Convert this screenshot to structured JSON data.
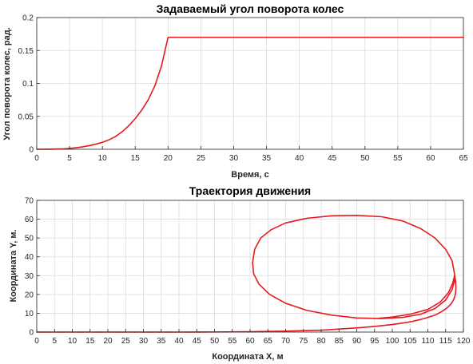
{
  "colors": {
    "series": "#e8191f",
    "grid": "#dcdcdc",
    "axis": "#262626",
    "background": "#ffffff"
  },
  "chart_data": [
    {
      "type": "line",
      "title": "Задаваемый угол поворота колес",
      "xlabel": "Время, с",
      "ylabel": "Угол поворота колес, рад.",
      "xlim": [
        0,
        65
      ],
      "ylim": [
        0,
        0.2
      ],
      "xticks": [
        0,
        5,
        10,
        15,
        20,
        25,
        30,
        35,
        40,
        45,
        50,
        55,
        60,
        65
      ],
      "yticks": [
        0,
        0.05,
        0.1,
        0.15,
        0.2
      ],
      "xtick_labels": [
        "0",
        "5",
        "10",
        "15",
        "20",
        "25",
        "30",
        "35",
        "40",
        "45",
        "50",
        "55",
        "60",
        "65"
      ],
      "ytick_labels": [
        "0",
        "0.05",
        "0.1",
        "0.15",
        "0.2"
      ],
      "grid": true,
      "series": [
        {
          "color": "#e8191f",
          "x": [
            0,
            2,
            4,
            5,
            6,
            7,
            8,
            9,
            10,
            11,
            12,
            13,
            14,
            15,
            16,
            17,
            18,
            19,
            20,
            25,
            30,
            35,
            40,
            45,
            50,
            55,
            60,
            65
          ],
          "y": [
            0,
            0.0001,
            0.0006,
            0.0013,
            0.0023,
            0.0037,
            0.0055,
            0.0078,
            0.0106,
            0.0143,
            0.0195,
            0.0265,
            0.0355,
            0.0465,
            0.0595,
            0.0755,
            0.0965,
            0.1265,
            0.17,
            0.17,
            0.17,
            0.17,
            0.17,
            0.17,
            0.17,
            0.17,
            0.17,
            0.17
          ]
        }
      ]
    },
    {
      "type": "line",
      "title": "Траектория движения",
      "xlabel": "Координата X, м",
      "ylabel": "Координата Y, м.",
      "xlim": [
        0,
        120
      ],
      "ylim": [
        0,
        70
      ],
      "xticks": [
        0,
        5,
        10,
        15,
        20,
        25,
        30,
        35,
        40,
        45,
        50,
        55,
        60,
        65,
        70,
        75,
        80,
        85,
        90,
        95,
        100,
        105,
        110,
        115,
        120
      ],
      "yticks": [
        0,
        10,
        20,
        30,
        40,
        50,
        60,
        70
      ],
      "xtick_labels": [
        "0",
        "5",
        "10",
        "15",
        "20",
        "25",
        "30",
        "35",
        "40",
        "45",
        "50",
        "55",
        "60",
        "65",
        "70",
        "75",
        "80",
        "85",
        "90",
        "95",
        "100",
        "105",
        "110",
        "115",
        "120"
      ],
      "ytick_labels": [
        "0",
        "10",
        "20",
        "30",
        "40",
        "50",
        "60",
        "70"
      ],
      "grid": true,
      "series": [
        {
          "color": "#e8191f",
          "x": [
            0,
            40,
            50,
            60,
            70,
            80,
            85,
            90,
            95,
            100,
            103,
            106,
            109,
            112,
            114,
            115.5,
            116.5,
            117.2,
            117.6,
            117.8,
            117.9,
            117.8,
            117.4,
            116.8,
            115,
            112,
            108,
            103,
            97,
            90,
            83,
            76,
            70,
            66,
            63,
            61.3,
            60.7,
            61,
            62.5,
            65.5,
            70,
            76,
            83,
            90,
            97,
            103,
            108,
            112,
            115,
            116.8,
            117.6,
            117.5,
            117,
            115.8,
            113.5,
            110,
            105,
            100,
            96
          ],
          "y": [
            0,
            0,
            0.05,
            0.2,
            0.5,
            1,
            1.6,
            2.2,
            3,
            4,
            4.8,
            5.8,
            7.2,
            9,
            11,
            13,
            15,
            17,
            19,
            21,
            24,
            27,
            32,
            38,
            44,
            50,
            55,
            59,
            61.3,
            62,
            61.8,
            60.5,
            58,
            54.5,
            50,
            44,
            37,
            31,
            25.5,
            20,
            15.3,
            11.5,
            9,
            7.5,
            7.2,
            7.8,
            9.5,
            12.5,
            17,
            22.5,
            28,
            30,
            26,
            21,
            16,
            12,
            9.5,
            8,
            7.3
          ]
        }
      ]
    }
  ]
}
